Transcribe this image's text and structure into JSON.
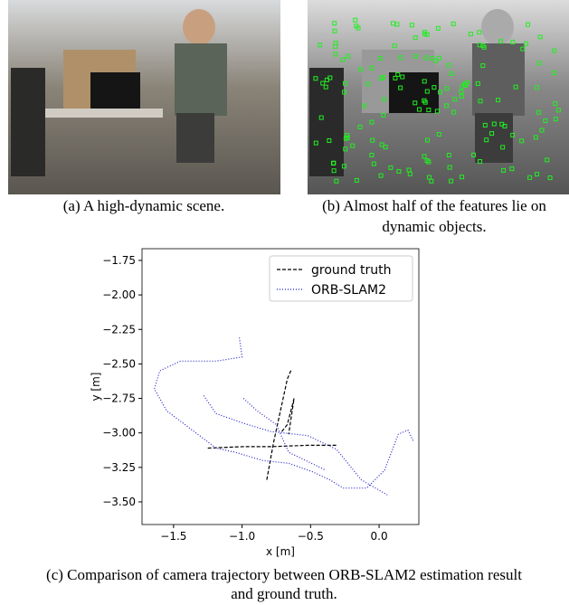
{
  "captions": {
    "a": [
      "(a) A high-dynamic scene."
    ],
    "b": [
      "(b) Almost half of the features lie on",
      "dynamic objects."
    ],
    "c": [
      "(c) Comparison of camera trajectory between ORB-SLAM2 estimation result",
      "and ground truth."
    ]
  },
  "chart_data": {
    "type": "line",
    "xlabel": "x [m]",
    "ylabel": "y [m]",
    "legend": "upper right",
    "xlim": [
      -1.73,
      0.29
    ],
    "ylim": [
      -3.664,
      -1.665
    ],
    "xticks": [
      {
        "value": -1.5,
        "label": "−1.5"
      },
      {
        "value": -1.0,
        "label": "−1.0"
      },
      {
        "value": -0.5,
        "label": "−0.5"
      },
      {
        "value": 0,
        "label": "0.0"
      }
    ],
    "yticks": [
      {
        "value": -1.75,
        "label": "−1.75"
      },
      {
        "value": -2.0,
        "label": "−2.00"
      },
      {
        "value": -2.25,
        "label": "−2.25"
      },
      {
        "value": -2.5,
        "label": "−2.50"
      },
      {
        "value": -2.75,
        "label": "−2.75"
      },
      {
        "value": -3.0,
        "label": "−3.00"
      },
      {
        "value": -3.25,
        "label": "−3.25"
      },
      {
        "value": -3.5,
        "label": "−3.50"
      }
    ],
    "series": [
      {
        "name": "ground truth",
        "color": "#000000",
        "dash": "4,2",
        "x": [
          -1.25,
          -0.99,
          -0.79,
          -0.52,
          -0.31,
          null,
          -0.82,
          -0.77,
          -0.72,
          -0.67,
          -0.64,
          null,
          -0.71,
          -0.67,
          -0.62,
          -0.66
        ],
        "y": [
          -3.11,
          -3.1,
          -3.1,
          -3.09,
          -3.09,
          null,
          -3.34,
          -3.07,
          -2.84,
          -2.61,
          -2.54,
          null,
          -2.99,
          -2.94,
          -2.75,
          -3.01
        ]
      },
      {
        "name": "ORB-SLAM2",
        "color": "#2222cc",
        "dash": "1,2",
        "x": [
          -1.02,
          -1.0,
          -1.19,
          -1.45,
          -1.6,
          -1.64,
          -1.55,
          -1.35,
          -1.19,
          -1.05,
          -0.85,
          -0.66,
          -0.49,
          -0.36,
          -0.26,
          -0.09,
          0.04,
          0.14,
          0.21,
          0.25,
          null,
          -1.28,
          -1.19,
          -0.99,
          -0.79,
          -0.52,
          -0.31,
          -0.13,
          0.06,
          null,
          -0.99,
          -0.89,
          -0.75,
          -0.66,
          -0.39
        ],
        "y": [
          -2.31,
          -2.45,
          -2.48,
          -2.48,
          -2.55,
          -2.68,
          -2.84,
          -2.99,
          -3.11,
          -3.14,
          -3.2,
          -3.22,
          -3.28,
          -3.34,
          -3.4,
          -3.4,
          -3.27,
          -3.01,
          -2.98,
          -3.06,
          null,
          -2.73,
          -2.86,
          -2.93,
          -2.99,
          -3.02,
          -3.12,
          -3.34,
          -3.45,
          null,
          -2.75,
          -2.84,
          -2.94,
          -3.14,
          -3.27
        ]
      }
    ]
  }
}
